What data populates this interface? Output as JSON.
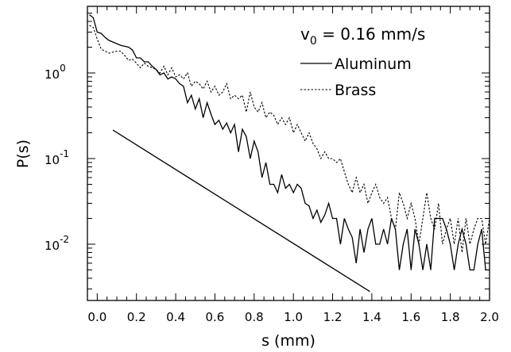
{
  "chart_data": {
    "type": "line",
    "xlabel": "s (mm)",
    "ylabel": "P(s)",
    "xlim": [
      -0.05,
      2.0
    ],
    "ylim": [
      0.0022,
      6.0
    ],
    "yscale": "log",
    "x_ticks": [
      {
        "value": 0.0,
        "label": "0.0"
      },
      {
        "value": 0.2,
        "label": "0.2"
      },
      {
        "value": 0.4,
        "label": "0.4"
      },
      {
        "value": 0.6,
        "label": "0.6"
      },
      {
        "value": 0.8,
        "label": "0.8"
      },
      {
        "value": 1.0,
        "label": "1.0"
      },
      {
        "value": 1.2,
        "label": "1.2"
      },
      {
        "value": 1.4,
        "label": "1.4"
      },
      {
        "value": 1.6,
        "label": "1.6"
      },
      {
        "value": 1.8,
        "label": "1.8"
      },
      {
        "value": 2.0,
        "label": "2.0"
      }
    ],
    "y_ticks": [
      {
        "value": 1,
        "base": "10",
        "exp": "0"
      },
      {
        "value": 0.1,
        "base": "10",
        "exp": "-1"
      },
      {
        "value": 0.01,
        "base": "10",
        "exp": "-2"
      }
    ],
    "annotation": {
      "prefix": "v",
      "sub": "0",
      "suffix": " = 0.16 mm/s"
    },
    "legend_position": "top-right",
    "grid": false,
    "series": [
      {
        "name": "Aluminum",
        "style": "solid",
        "x": [
          -0.04,
          -0.02,
          0.0,
          0.02,
          0.04,
          0.06,
          0.08,
          0.1,
          0.12,
          0.14,
          0.16,
          0.18,
          0.2,
          0.22,
          0.24,
          0.26,
          0.28,
          0.3,
          0.32,
          0.34,
          0.36,
          0.38,
          0.4,
          0.42,
          0.44,
          0.46,
          0.48,
          0.5,
          0.52,
          0.54,
          0.56,
          0.58,
          0.6,
          0.62,
          0.64,
          0.66,
          0.68,
          0.7,
          0.72,
          0.74,
          0.76,
          0.78,
          0.8,
          0.82,
          0.84,
          0.86,
          0.88,
          0.9,
          0.92,
          0.94,
          0.96,
          0.98,
          1.0,
          1.02,
          1.04,
          1.06,
          1.08,
          1.1,
          1.12,
          1.14,
          1.16,
          1.18,
          1.2,
          1.22,
          1.24,
          1.26,
          1.28,
          1.3,
          1.32,
          1.34,
          1.36,
          1.38,
          1.4,
          1.42,
          1.44,
          1.46,
          1.48,
          1.5,
          1.52,
          1.54,
          1.56,
          1.58,
          1.6,
          1.62,
          1.64,
          1.66,
          1.68,
          1.7,
          1.72,
          1.74,
          1.76,
          1.78,
          1.8,
          1.82,
          1.84,
          1.86,
          1.88,
          1.9,
          1.92,
          1.94,
          1.96,
          1.98,
          2.0
        ],
        "y": [
          4.8,
          4.4,
          3.0,
          2.9,
          2.6,
          2.4,
          2.3,
          2.2,
          2.1,
          2.05,
          2.0,
          1.85,
          1.5,
          1.5,
          1.35,
          1.35,
          1.2,
          1.1,
          0.95,
          1.0,
          0.85,
          0.9,
          0.85,
          0.75,
          0.7,
          0.45,
          0.55,
          0.38,
          0.5,
          0.3,
          0.45,
          0.33,
          0.25,
          0.28,
          0.22,
          0.26,
          0.2,
          0.25,
          0.12,
          0.22,
          0.18,
          0.1,
          0.16,
          0.12,
          0.06,
          0.09,
          0.05,
          0.05,
          0.04,
          0.065,
          0.045,
          0.05,
          0.04,
          0.05,
          0.045,
          0.03,
          0.028,
          0.02,
          0.025,
          0.018,
          0.022,
          0.03,
          0.02,
          0.02,
          0.01,
          0.02,
          0.015,
          0.012,
          0.006,
          0.015,
          0.008,
          0.015,
          0.02,
          0.01,
          0.01,
          0.015,
          0.01,
          0.02,
          0.015,
          0.005,
          0.01,
          0.015,
          0.005,
          0.015,
          0.01,
          0.005,
          0.01,
          0.005,
          0.02,
          0.02,
          0.02,
          0.015,
          0.01,
          0.005,
          0.01,
          0.015,
          0.01,
          0.005,
          0.005,
          0.01,
          0.015,
          0.005,
          0.005
        ]
      },
      {
        "name": "Brass",
        "style": "dashed",
        "x": [
          -0.04,
          -0.02,
          0.0,
          0.02,
          0.04,
          0.06,
          0.08,
          0.1,
          0.12,
          0.14,
          0.16,
          0.18,
          0.2,
          0.22,
          0.24,
          0.26,
          0.28,
          0.3,
          0.32,
          0.34,
          0.36,
          0.38,
          0.4,
          0.42,
          0.44,
          0.46,
          0.48,
          0.5,
          0.52,
          0.54,
          0.56,
          0.58,
          0.6,
          0.62,
          0.64,
          0.66,
          0.68,
          0.7,
          0.72,
          0.74,
          0.76,
          0.78,
          0.8,
          0.82,
          0.84,
          0.86,
          0.88,
          0.9,
          0.92,
          0.94,
          0.96,
          0.98,
          1.0,
          1.02,
          1.04,
          1.06,
          1.08,
          1.1,
          1.12,
          1.14,
          1.16,
          1.18,
          1.2,
          1.22,
          1.24,
          1.26,
          1.28,
          1.3,
          1.32,
          1.34,
          1.36,
          1.38,
          1.4,
          1.42,
          1.44,
          1.46,
          1.48,
          1.5,
          1.52,
          1.54,
          1.56,
          1.58,
          1.6,
          1.62,
          1.64,
          1.66,
          1.68,
          1.7,
          1.72,
          1.74,
          1.76,
          1.78,
          1.8,
          1.82,
          1.84,
          1.86,
          1.88,
          1.9,
          1.92,
          1.94,
          1.96,
          1.98,
          2.0
        ],
        "y": [
          3.6,
          3.4,
          2.5,
          1.9,
          1.8,
          1.7,
          1.75,
          1.8,
          1.8,
          1.6,
          1.4,
          1.45,
          1.3,
          1.15,
          1.3,
          1.2,
          1.15,
          1.1,
          1.0,
          1.2,
          0.95,
          1.15,
          0.9,
          0.95,
          0.85,
          1.0,
          0.7,
          0.8,
          0.75,
          0.65,
          0.8,
          0.6,
          0.7,
          0.55,
          0.6,
          0.75,
          0.5,
          0.55,
          0.5,
          0.55,
          0.35,
          0.6,
          0.4,
          0.35,
          0.45,
          0.3,
          0.35,
          0.32,
          0.25,
          0.3,
          0.25,
          0.3,
          0.2,
          0.25,
          0.2,
          0.16,
          0.2,
          0.15,
          0.13,
          0.1,
          0.12,
          0.1,
          0.1,
          0.09,
          0.1,
          0.07,
          0.05,
          0.04,
          0.06,
          0.04,
          0.05,
          0.03,
          0.04,
          0.05,
          0.035,
          0.03,
          0.035,
          0.02,
          0.015,
          0.04,
          0.03,
          0.02,
          0.03,
          0.02,
          0.01,
          0.02,
          0.04,
          0.02,
          0.015,
          0.03,
          0.01,
          0.015,
          0.02,
          0.01,
          0.02,
          0.008,
          0.02,
          0.01,
          0.015,
          0.02,
          0.02,
          0.01,
          0.02
        ]
      },
      {
        "name": "",
        "style": "solid",
        "x": [
          0.08,
          1.39
        ],
        "y": [
          0.215,
          0.0028
        ]
      }
    ]
  }
}
